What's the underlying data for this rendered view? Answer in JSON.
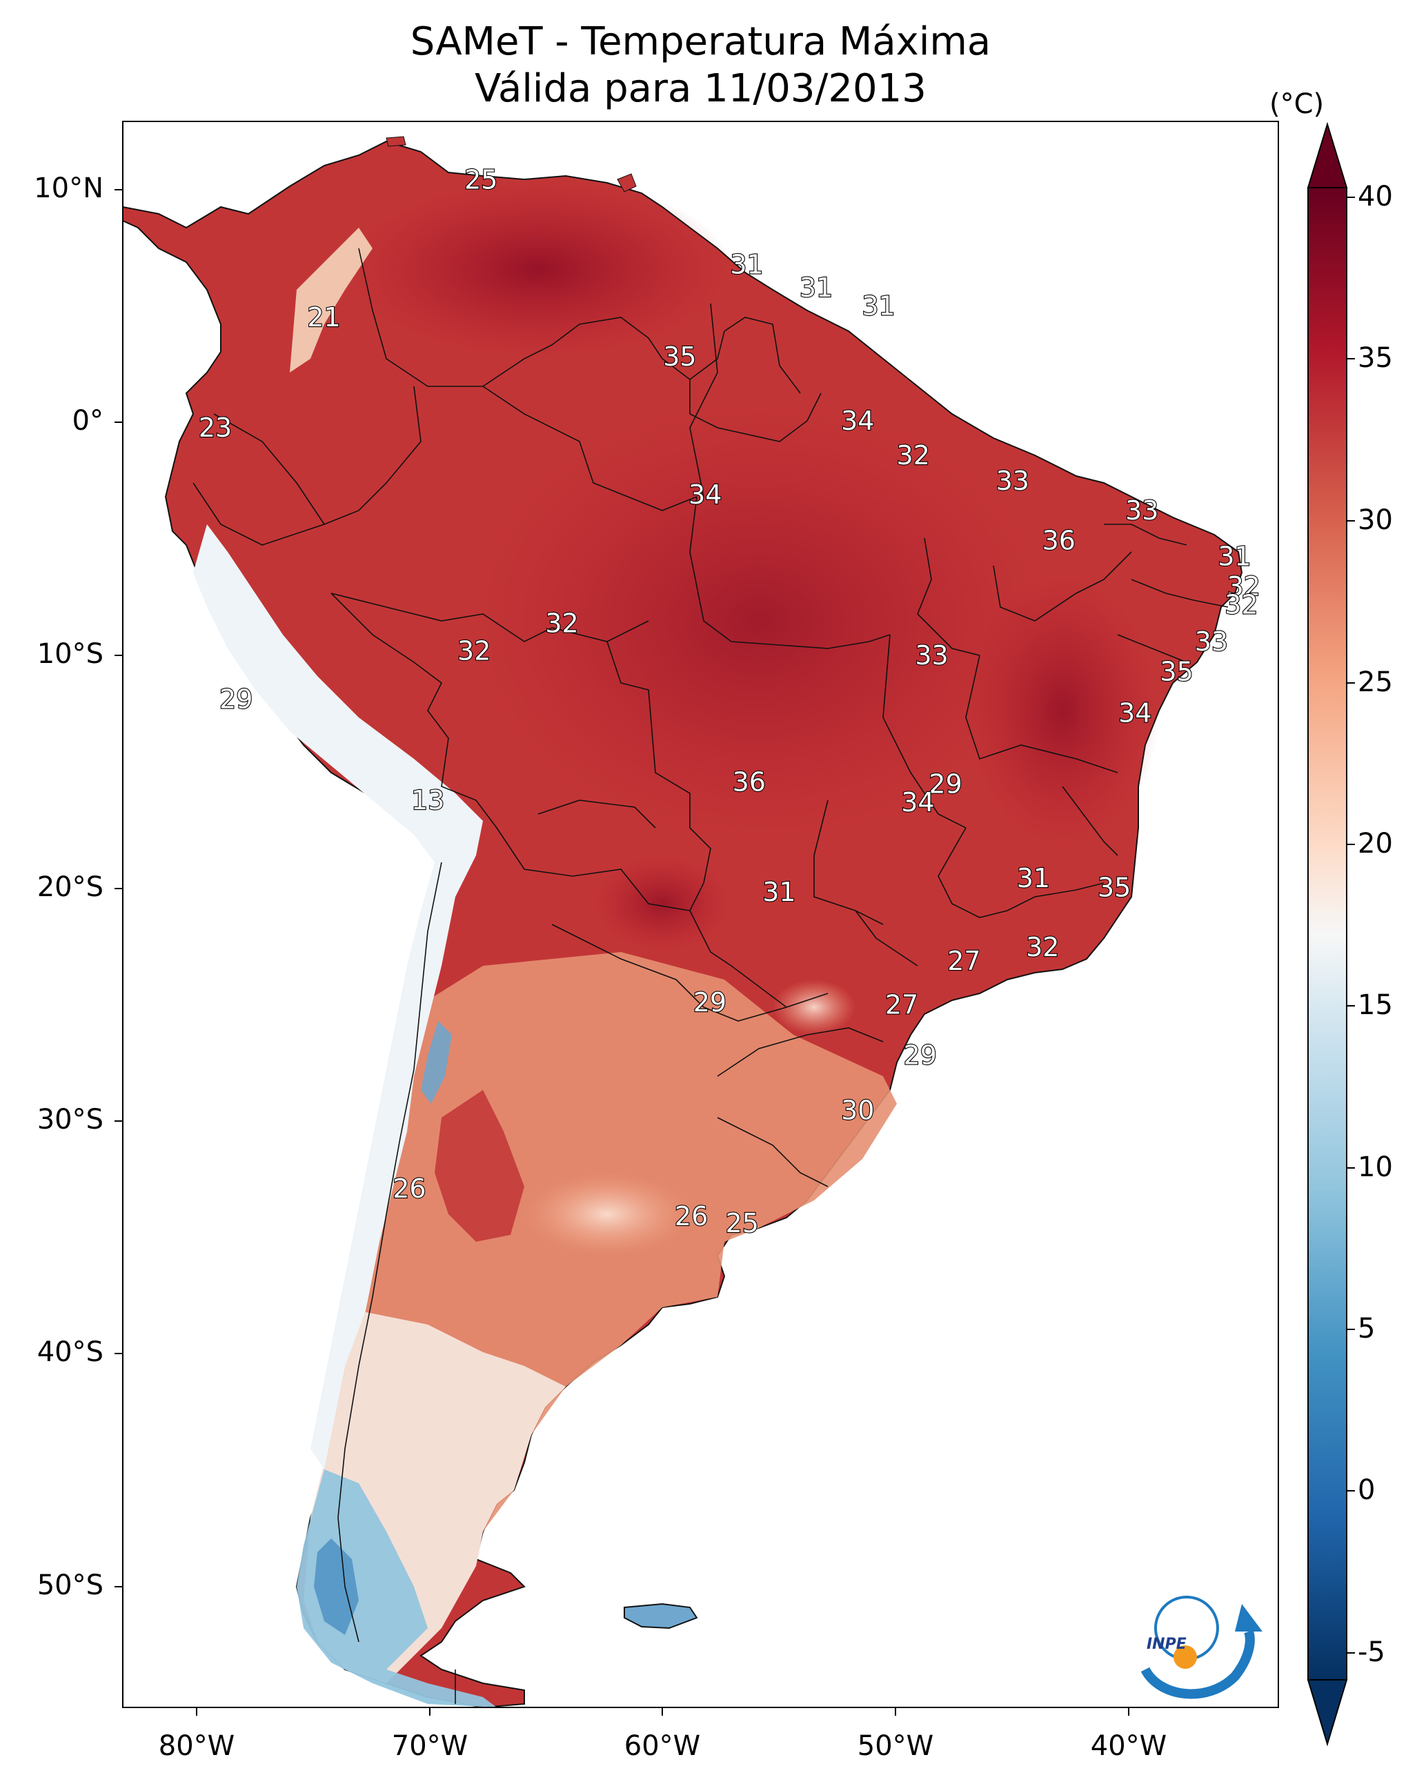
{
  "title": {
    "line1": "SAMeT - Temperatura Máxima",
    "line2": "Válida para 11/03/2013"
  },
  "axes": {
    "lat_ticks": [
      "10°N",
      "0°",
      "10°S",
      "20°S",
      "30°S",
      "40°S",
      "50°S"
    ],
    "lon_ticks": [
      "80°W",
      "70°W",
      "60°W",
      "50°W",
      "40°W"
    ]
  },
  "colorbar": {
    "unit": "(°C)",
    "ticks": [
      "40",
      "35",
      "30",
      "25",
      "20",
      "15",
      "10",
      "5",
      "0",
      "-5"
    ],
    "range": [
      -5,
      40
    ],
    "colors": {
      "c40": "#67001f",
      "c35": "#b2182b",
      "c30": "#d6604d",
      "c25": "#f4a582",
      "c20": "#fddbc7",
      "c17": "#f7f7f7",
      "c13": "#d1e5f0",
      "c8": "#92c5de",
      "c3": "#4393c3",
      "c0": "#2166ac",
      "cm5": "#053061"
    }
  },
  "logo": {
    "text": "INPE"
  },
  "chart_data": {
    "type": "heatmap",
    "title": "SAMeT - Temperatura Máxima Válida para 11/03/2013",
    "units": "°C",
    "extent_lon": [
      -83,
      -33
    ],
    "extent_lat": [
      -56,
      13
    ],
    "value_range": [
      -5,
      40
    ],
    "station_values": [
      {
        "lon": -67.5,
        "lat": 10.5,
        "value": 25
      },
      {
        "lon": -56.0,
        "lat": 6.8,
        "value": 31
      },
      {
        "lon": -53.0,
        "lat": 5.8,
        "value": 31
      },
      {
        "lon": -50.3,
        "lat": 5.0,
        "value": 31
      },
      {
        "lon": -74.3,
        "lat": 4.5,
        "value": 21
      },
      {
        "lon": -58.9,
        "lat": 2.8,
        "value": 35
      },
      {
        "lon": -51.2,
        "lat": 0.0,
        "value": 34
      },
      {
        "lon": -79.0,
        "lat": -0.3,
        "value": 23
      },
      {
        "lon": -48.8,
        "lat": -1.5,
        "value": 32
      },
      {
        "lon": -57.8,
        "lat": -3.2,
        "value": 34
      },
      {
        "lon": -44.5,
        "lat": -2.6,
        "value": 33
      },
      {
        "lon": -38.9,
        "lat": -3.9,
        "value": 33
      },
      {
        "lon": -42.5,
        "lat": -5.2,
        "value": 36
      },
      {
        "lon": -34.9,
        "lat": -5.9,
        "value": 31
      },
      {
        "lon": -34.5,
        "lat": -7.2,
        "value": 32
      },
      {
        "lon": -34.6,
        "lat": -8.0,
        "value": 32
      },
      {
        "lon": -64.0,
        "lat": -8.8,
        "value": 32
      },
      {
        "lon": -67.8,
        "lat": -10.0,
        "value": 32
      },
      {
        "lon": -35.9,
        "lat": -9.6,
        "value": 33
      },
      {
        "lon": -48.0,
        "lat": -10.2,
        "value": 33
      },
      {
        "lon": -37.4,
        "lat": -10.9,
        "value": 35
      },
      {
        "lon": -78.1,
        "lat": -12.1,
        "value": 29
      },
      {
        "lon": -39.2,
        "lat": -12.7,
        "value": 34
      },
      {
        "lon": -69.8,
        "lat": -16.5,
        "value": 13
      },
      {
        "lon": -55.9,
        "lat": -15.7,
        "value": 36
      },
      {
        "lon": -47.4,
        "lat": -15.8,
        "value": 29
      },
      {
        "lon": -48.6,
        "lat": -16.6,
        "value": 34
      },
      {
        "lon": -43.6,
        "lat": -19.9,
        "value": 31
      },
      {
        "lon": -40.1,
        "lat": -20.3,
        "value": 35
      },
      {
        "lon": -54.6,
        "lat": -20.5,
        "value": 31
      },
      {
        "lon": -43.2,
        "lat": -22.9,
        "value": 32
      },
      {
        "lon": -46.6,
        "lat": -23.5,
        "value": 27
      },
      {
        "lon": -57.6,
        "lat": -25.3,
        "value": 29
      },
      {
        "lon": -49.3,
        "lat": -25.4,
        "value": 27
      },
      {
        "lon": -48.5,
        "lat": -27.6,
        "value": 29
      },
      {
        "lon": -51.2,
        "lat": -30.0,
        "value": 30
      },
      {
        "lon": -70.6,
        "lat": -33.4,
        "value": 26
      },
      {
        "lon": -58.4,
        "lat": -34.6,
        "value": 26
      },
      {
        "lon": -56.2,
        "lat": -34.9,
        "value": 25
      }
    ]
  }
}
